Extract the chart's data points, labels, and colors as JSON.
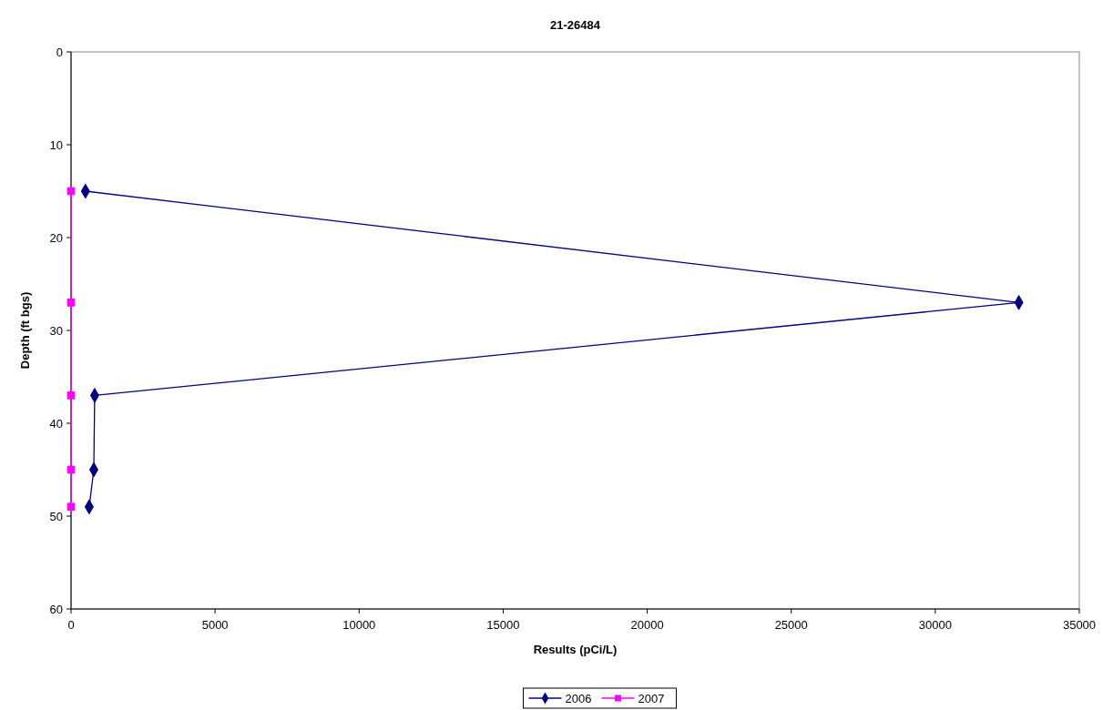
{
  "chart_data": {
    "type": "line",
    "title": "21-26484",
    "xlabel": "Results (pCi/L)",
    "ylabel": "Depth (ft bgs)",
    "xlim": [
      0,
      35000
    ],
    "xticks": [
      0,
      5000,
      10000,
      15000,
      20000,
      25000,
      30000,
      35000
    ],
    "ylim": [
      60,
      0
    ],
    "yticks": [
      0,
      10,
      20,
      30,
      40,
      50,
      60
    ],
    "grid": false,
    "legend": "bottom",
    "series": [
      {
        "name": "2006",
        "color": "#000080",
        "marker": "diamond",
        "x": [
          500,
          32900,
          820,
          790,
          630
        ],
        "values": [
          15,
          27,
          37,
          45,
          49
        ]
      },
      {
        "name": "2007",
        "color": "#ff00ff",
        "marker": "square",
        "x": [
          0,
          0,
          0,
          0,
          0
        ],
        "values": [
          15,
          27,
          37,
          45,
          49
        ]
      }
    ]
  }
}
